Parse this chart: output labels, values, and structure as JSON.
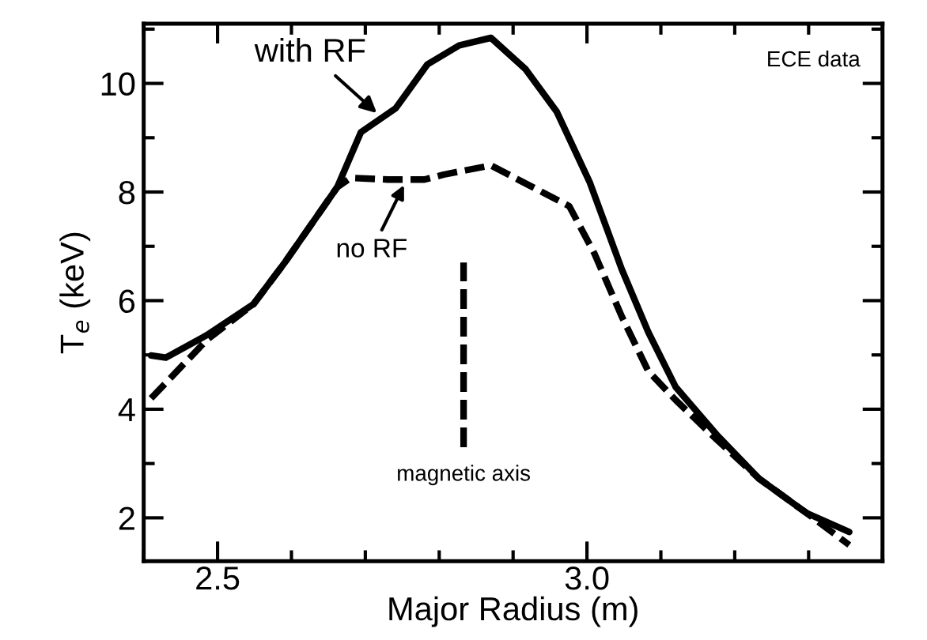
{
  "chart_data": {
    "type": "line",
    "xlabel": "Major Radius (m)",
    "ylabel": "T$_{e}$ (keV)",
    "xlim": [
      2.4,
      3.4
    ],
    "ylim": [
      1.2,
      11.1
    ],
    "xticks": [
      2.5,
      {
        "value": 3.0,
        "label": "3.0"
      }
    ],
    "yticks": [
      2,
      4,
      6,
      8,
      10
    ],
    "grid": false,
    "legend": false,
    "marker": "none",
    "series": [
      {
        "color": "#000000",
        "line_style": "solid",
        "x": [
          2.41,
          2.43,
          2.485,
          2.549,
          2.592,
          2.662,
          2.694,
          2.741,
          2.784,
          2.827,
          2.87,
          2.917,
          2.959,
          3.004,
          3.047,
          3.083,
          3.12,
          3.175,
          3.233,
          3.297,
          3.355
        ],
        "values": [
          4.99,
          4.95,
          5.36,
          5.94,
          6.72,
          8.09,
          9.1,
          9.54,
          10.35,
          10.7,
          10.84,
          10.26,
          9.48,
          8.17,
          6.58,
          5.42,
          4.41,
          3.54,
          2.72,
          2.09,
          1.74
        ]
      },
      {
        "color": "#000000",
        "line_style": "dashed",
        "x": [
          2.41,
          2.485,
          2.549,
          2.592,
          2.662,
          2.68,
          2.73,
          2.78,
          2.806,
          2.87,
          2.976,
          3.01,
          3.047,
          3.083,
          3.12,
          3.175,
          3.233,
          3.297,
          3.355
        ],
        "values": [
          4.2,
          5.27,
          5.94,
          6.72,
          8.09,
          8.26,
          8.23,
          8.23,
          8.32,
          8.49,
          7.74,
          6.87,
          5.71,
          4.7,
          4.17,
          3.45,
          2.72,
          2.09,
          1.5
        ]
      },
      {
        "color": "#000000",
        "line_style": "dashed",
        "x": [
          2.833,
          2.833
        ],
        "values": [
          3.3,
          6.7
        ]
      }
    ],
    "annotations": [
      {
        "text": "with RF",
        "x": 2.72,
        "y": 9.4
      },
      {
        "text": "no RF",
        "x": 2.755,
        "y": 8.2
      },
      {
        "text": "magnetic axis",
        "x": 2.833,
        "y": 3.3
      },
      "ECE data"
    ]
  }
}
